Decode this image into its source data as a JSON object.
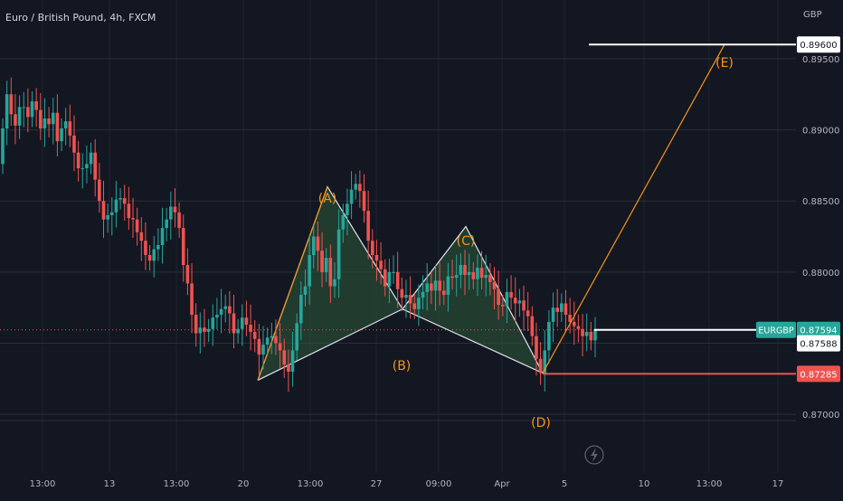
{
  "header": {
    "symbol_title": "Euro / British Pound, 4h, FXCM",
    "currency": "GBP"
  },
  "colors": {
    "background": "#131722",
    "grid": "#2a2e39",
    "up": "#26a69a",
    "down": "#ef5350",
    "pattern_line": "#e0e3eb",
    "pattern_fill": "#2e5a3a",
    "target_line": "#f7931a",
    "label_orange": "#f7931a",
    "axis_text": "#b2b5be"
  },
  "chart_data": {
    "type": "candlestick",
    "symbol": "EURGBP",
    "interval": "4h",
    "y_axis": {
      "ticks": [
        "0.89500",
        "0.89000",
        "0.88500",
        "0.88000",
        "0.87500",
        "0.87000"
      ],
      "tick_values": [
        0.895,
        0.89,
        0.885,
        0.88,
        0.875,
        0.87
      ],
      "range": [
        0.8685,
        0.8975
      ]
    },
    "x_axis": {
      "ticks": [
        "13:00",
        "13",
        "13:00",
        "20",
        "13:00",
        "27",
        "09:00",
        "Apr",
        "5",
        "10",
        "13:00",
        "17"
      ]
    },
    "price_levels": [
      {
        "label": "0.89600",
        "value": 0.896,
        "style": "white"
      },
      {
        "label": "EURGBP",
        "value": 0.87594,
        "price": "0.87594",
        "style": "green"
      },
      {
        "label": "0.87588",
        "value": 0.87588,
        "style": "white-box"
      },
      {
        "label": "0.87285",
        "value": 0.87285,
        "style": "red"
      }
    ],
    "pattern_points": [
      {
        "label": "(A)",
        "value": 0.886
      },
      {
        "label": "(B)",
        "value": 0.8774
      },
      {
        "label": "(C)",
        "value": 0.8832
      },
      {
        "label": "(D)",
        "value": 0.8729
      },
      {
        "label": "(E)",
        "value": 0.896
      }
    ],
    "pattern_start_value": 0.8724,
    "candles": {
      "open": [
        0.8876,
        0.8901,
        0.8925,
        0.8911,
        0.8903,
        0.8916,
        0.8916,
        0.8909,
        0.892,
        0.8914,
        0.8901,
        0.8908,
        0.8904,
        0.8912,
        0.8892,
        0.8901,
        0.8906,
        0.8896,
        0.8884,
        0.8873,
        0.8873,
        0.8876,
        0.8884,
        0.8865,
        0.885,
        0.8837,
        0.884,
        0.8842,
        0.8851,
        0.8852,
        0.8848,
        0.8838,
        0.8837,
        0.8828,
        0.8822,
        0.8812,
        0.8808,
        0.8816,
        0.8819,
        0.8831,
        0.8837,
        0.8846,
        0.8842,
        0.8831,
        0.8805,
        0.8792,
        0.877,
        0.8757,
        0.8761,
        0.8758,
        0.876,
        0.8768,
        0.877,
        0.8774,
        0.8776,
        0.8771,
        0.8757,
        0.876,
        0.8768,
        0.8763,
        0.8758,
        0.8753,
        0.8742,
        0.8749,
        0.8754,
        0.8755,
        0.875,
        0.8745,
        0.8735,
        0.873,
        0.8745,
        0.8764,
        0.8784,
        0.879,
        0.8812,
        0.8825,
        0.8815,
        0.88,
        0.881,
        0.879,
        0.8795,
        0.883,
        0.884,
        0.8848,
        0.8858,
        0.8862,
        0.8857,
        0.8843,
        0.8822,
        0.8812,
        0.8808,
        0.8802,
        0.879,
        0.88,
        0.88,
        0.8788,
        0.8782,
        0.8784,
        0.8778,
        0.8774,
        0.8782,
        0.8786,
        0.8792,
        0.8787,
        0.8794,
        0.8787,
        0.8784,
        0.8797,
        0.8796,
        0.8798,
        0.8805,
        0.8798,
        0.88,
        0.8795,
        0.8803,
        0.8796,
        0.8798,
        0.8793,
        0.8788,
        0.8777,
        0.8776,
        0.8786,
        0.8782,
        0.8778,
        0.878,
        0.8773,
        0.8769,
        0.8755,
        0.8739,
        0.8729,
        0.8745,
        0.8765,
        0.8775,
        0.8772,
        0.8778,
        0.877,
        0.8765,
        0.8762,
        0.876,
        0.8755,
        0.8758,
        0.8752
      ],
      "close": [
        0.8901,
        0.8925,
        0.8911,
        0.8903,
        0.8916,
        0.8916,
        0.8909,
        0.892,
        0.8914,
        0.8901,
        0.8908,
        0.8904,
        0.8912,
        0.8892,
        0.8901,
        0.8906,
        0.8896,
        0.8884,
        0.8873,
        0.8873,
        0.8876,
        0.8884,
        0.8865,
        0.885,
        0.8837,
        0.884,
        0.8842,
        0.8851,
        0.8852,
        0.8848,
        0.8838,
        0.8837,
        0.8828,
        0.8822,
        0.8812,
        0.8808,
        0.8816,
        0.8819,
        0.8831,
        0.8837,
        0.8846,
        0.8842,
        0.8831,
        0.8805,
        0.8792,
        0.877,
        0.8757,
        0.8761,
        0.8758,
        0.876,
        0.8768,
        0.877,
        0.8774,
        0.8776,
        0.8771,
        0.8757,
        0.876,
        0.8768,
        0.8763,
        0.8758,
        0.8753,
        0.8742,
        0.8749,
        0.8754,
        0.8755,
        0.875,
        0.8745,
        0.8735,
        0.873,
        0.8745,
        0.8764,
        0.8784,
        0.879,
        0.8812,
        0.8825,
        0.8815,
        0.88,
        0.881,
        0.879,
        0.8795,
        0.883,
        0.884,
        0.8848,
        0.8858,
        0.8862,
        0.8857,
        0.8843,
        0.8822,
        0.8812,
        0.8808,
        0.8802,
        0.879,
        0.88,
        0.88,
        0.8788,
        0.8782,
        0.8784,
        0.8778,
        0.8774,
        0.8782,
        0.8786,
        0.8792,
        0.8787,
        0.8794,
        0.8787,
        0.8784,
        0.8797,
        0.8796,
        0.8798,
        0.8805,
        0.8798,
        0.88,
        0.8795,
        0.8803,
        0.8796,
        0.8798,
        0.8793,
        0.8788,
        0.8777,
        0.8776,
        0.8786,
        0.8782,
        0.8778,
        0.878,
        0.8773,
        0.8769,
        0.8755,
        0.8739,
        0.8729,
        0.8745,
        0.8765,
        0.8775,
        0.8772,
        0.8778,
        0.877,
        0.8765,
        0.8762,
        0.876,
        0.8755,
        0.8758,
        0.8752,
        0.8759
      ]
    }
  }
}
